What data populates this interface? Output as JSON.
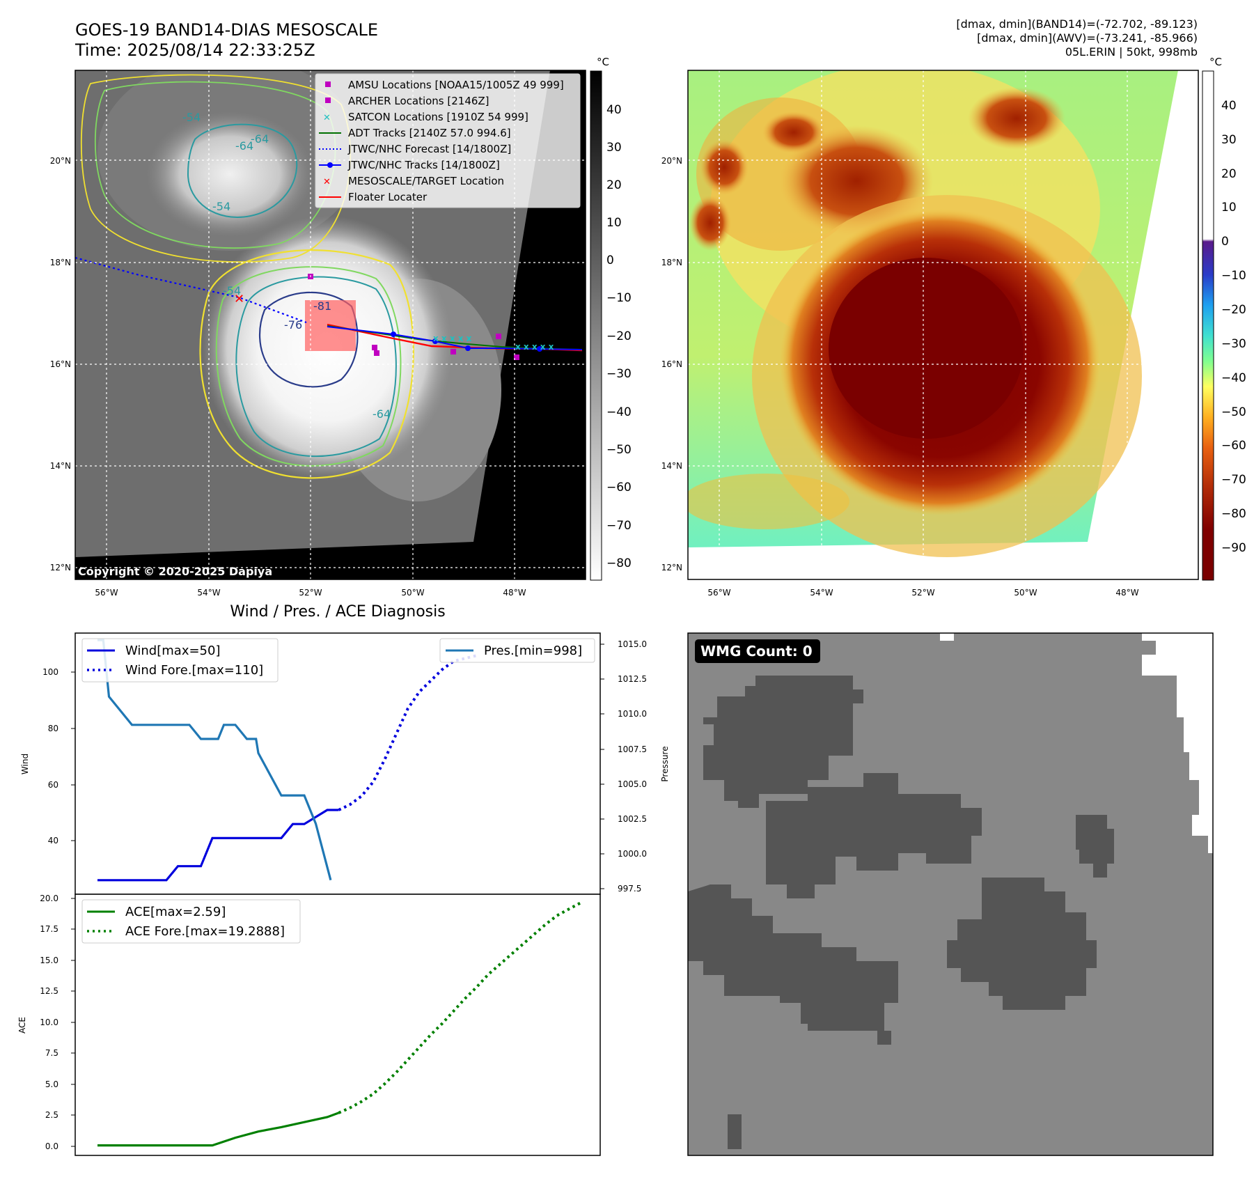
{
  "header": {
    "title_line1": "GOES-19 BAND14-DIAS MESOSCALE",
    "title_line2": "Time: 2025/08/14 22:33:25Z",
    "info_line1": "[dmax, dmin](BAND14)=(-72.702, -89.123)",
    "info_line2": "[dmax, dmin](AWV)=(-73.241, -85.966)",
    "info_line3": "05L.ERIN | 50kt, 998mb"
  },
  "map_axes": {
    "lat_ticks": [
      "20°N",
      "18°N",
      "16°N",
      "14°N",
      "12°N"
    ],
    "lon_ticks": [
      "56°W",
      "54°W",
      "52°W",
      "50°W",
      "48°W"
    ]
  },
  "ir_panel": {
    "copyright": "Copyright © 2020-2025 Dapiya",
    "colorbar_unit": "°C",
    "colorbar_ticks": [
      "40",
      "30",
      "20",
      "10",
      "0",
      "−10",
      "−20",
      "−30",
      "−40",
      "−50",
      "−60",
      "−70",
      "−80"
    ],
    "contour_labels": [
      "-54",
      "-64",
      "-54",
      "-64",
      "-81",
      "-76",
      "-54",
      "-64"
    ],
    "legend": [
      {
        "label": "AMSU Locations [NOAA15/1005Z 49 999]",
        "marker": "square",
        "color": "#c000c0"
      },
      {
        "label": "ARCHER Locations [2146Z]",
        "marker": "square",
        "color": "#c000c0"
      },
      {
        "label": "SATCON Locations [1910Z 54 999]",
        "marker": "x",
        "color": "#20c0c0"
      },
      {
        "label": "ADT Tracks [2140Z 57.0 994.6]",
        "marker": "line",
        "color": "#007000"
      },
      {
        "label": "JTWC/NHC Forecast [14/1800Z]",
        "marker": "dotted",
        "color": "#0000ff"
      },
      {
        "label": "JTWC/NHC Tracks [14/1800Z]",
        "marker": "line-dot",
        "color": "#0000ff"
      },
      {
        "label": "MESOSCALE/TARGET Location",
        "marker": "x",
        "color": "#ff0000"
      },
      {
        "label": "Floater Locater",
        "marker": "line",
        "color": "#ff0000"
      }
    ]
  },
  "awv_panel": {
    "colorbar_unit": "°C",
    "colorbar_ticks": [
      "40",
      "30",
      "20",
      "10",
      "0",
      "−10",
      "−20",
      "−30",
      "−40",
      "−50",
      "−60",
      "−70",
      "−80",
      "−90"
    ]
  },
  "wmg_panel": {
    "badge": "WMG Count: 0"
  },
  "chart_data": [
    {
      "type": "line",
      "title": "Wind / Pres. / ACE Diagnosis",
      "ylabel": "Wind",
      "y2label": "Pressure",
      "ylim": [
        20,
        113
      ],
      "y2lim": [
        997,
        1015.5
      ],
      "yticks": [
        "100",
        "80",
        "60",
        "40"
      ],
      "y2ticks": [
        "1015.0",
        "1012.5",
        "1010.0",
        "1007.5",
        "1005.0",
        "1002.5",
        "1000.0",
        "997.5"
      ],
      "legend_left": [
        "Wind[max=50]",
        "Wind Fore.[max=110]"
      ],
      "legend_right": [
        "Pres.[min=998]"
      ],
      "x": [
        0,
        1,
        2,
        3,
        4,
        5,
        6,
        7,
        8,
        9,
        10,
        11,
        12,
        13,
        14,
        15,
        16,
        17,
        18,
        19,
        20,
        21,
        22,
        23,
        24,
        25,
        26,
        27,
        28,
        29,
        30,
        31,
        32,
        33,
        34,
        35,
        36,
        37,
        38,
        39,
        40,
        41,
        42
      ],
      "series": [
        {
          "name": "Wind[max=50]",
          "style": "solid",
          "color": "#0000dd",
          "x": [
            0,
            6,
            7,
            9,
            10,
            16,
            17,
            18,
            20,
            21
          ],
          "values": [
            25,
            25,
            30,
            30,
            40,
            40,
            45,
            45,
            50,
            50
          ]
        },
        {
          "name": "Wind Fore.[max=110]",
          "style": "dotted",
          "color": "#0000dd",
          "x": [
            21,
            22,
            23,
            24,
            25,
            26,
            27,
            28,
            29,
            30,
            31,
            32,
            33
          ],
          "values": [
            50,
            52,
            55,
            60,
            68,
            77,
            86,
            92,
            96,
            100,
            103,
            104,
            105
          ]
        },
        {
          "name": "Pres.[min=998]",
          "style": "solid",
          "color": "#1f77b4",
          "axis": "right",
          "x": [
            0,
            0.5,
            1,
            2,
            3,
            8,
            9,
            10.5,
            11,
            12,
            13,
            13.8,
            14,
            16,
            17,
            18,
            19,
            20.3
          ],
          "values": [
            1015,
            1015,
            1011,
            1010,
            1009,
            1009,
            1008,
            1008,
            1009,
            1009,
            1008,
            1008,
            1007,
            1004,
            1004,
            1004,
            1002,
            998
          ]
        }
      ]
    },
    {
      "type": "line",
      "ylabel": "ACE",
      "ylim": [
        -0.8,
        20
      ],
      "yticks": [
        "20.0",
        "17.5",
        "15.0",
        "12.5",
        "10.0",
        "7.5",
        "5.0",
        "2.5",
        "0.0"
      ],
      "legend": [
        "ACE[max=2.59]",
        "ACE Fore.[max=19.2888]"
      ],
      "series": [
        {
          "name": "ACE[max=2.59]",
          "style": "solid",
          "color": "#008000",
          "x": [
            0,
            5,
            10,
            12,
            14,
            16,
            18,
            20,
            21
          ],
          "values": [
            0,
            0,
            0,
            0.61,
            1.1,
            1.45,
            1.85,
            2.25,
            2.59
          ]
        },
        {
          "name": "ACE Fore.[max=19.2888]",
          "style": "dotted",
          "color": "#008000",
          "x": [
            21,
            22,
            23,
            24,
            25,
            26,
            27,
            28,
            29,
            30,
            31,
            32,
            33,
            34,
            35,
            36,
            37,
            38,
            39,
            40,
            41,
            42
          ],
          "values": [
            2.59,
            3.0,
            3.5,
            4.1,
            4.9,
            5.8,
            6.8,
            7.8,
            8.8,
            9.7,
            10.7,
            11.7,
            12.6,
            13.6,
            14.4,
            15.2,
            16.0,
            16.8,
            17.6,
            18.3,
            18.8,
            19.29
          ]
        }
      ]
    }
  ]
}
